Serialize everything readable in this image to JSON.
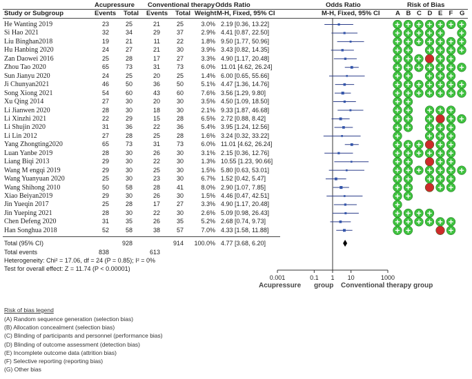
{
  "header": {
    "group1": "Acupressure",
    "group2": "Conventional therapy",
    "or_title": "Odds Ratio",
    "or_title2": "Odds Ratio",
    "rob_title": "Risk of Bias",
    "col_study": "Study or Subgroup",
    "col_events1": "Events",
    "col_total1": "Total",
    "col_events2": "Events",
    "col_total2": "Total",
    "col_weight": "Weight",
    "col_method": "M-H, Fixed, 95% CI",
    "col_method2": "M-H, Fixed, 95% CI",
    "rob_letters": [
      "A",
      "B",
      "C",
      "D",
      "E",
      "F",
      "G"
    ]
  },
  "studies": [
    {
      "name": "He Wanting 2019",
      "e1": "23",
      "t1": "25",
      "e2": "21",
      "t2": "25",
      "weight": "3.0%",
      "ci": "2.19 [0.36, 13.22]",
      "or": 2.19,
      "lo": 0.36,
      "hi": 13.22,
      "rob": [
        "+",
        "+",
        "+",
        "+",
        "+",
        "+",
        "+"
      ]
    },
    {
      "name": "Si Hao 2021",
      "e1": "32",
      "t1": "34",
      "e2": "29",
      "t2": "37",
      "weight": "2.9%",
      "ci": "4.41 [0.87, 22.50]",
      "or": 4.41,
      "lo": 0.87,
      "hi": 22.5,
      "rob": [
        "+",
        "+",
        "+",
        "+",
        "+",
        "",
        "+"
      ]
    },
    {
      "name": "Liu Binghan2018",
      "e1": "19",
      "t1": "21",
      "e2": "11",
      "t2": "22",
      "weight": "1.8%",
      "ci": "9.50 [1.77, 50.96]",
      "or": 9.5,
      "lo": 1.77,
      "hi": 50.96,
      "rob": [
        "+",
        "+",
        "+",
        "+",
        "+",
        "+",
        "+"
      ]
    },
    {
      "name": "Hu Hanbing 2020",
      "e1": "24",
      "t1": "27",
      "e2": "21",
      "t2": "30",
      "weight": "3.9%",
      "ci": "3.43 [0.82, 14.35]",
      "or": 3.43,
      "lo": 0.82,
      "hi": 14.35,
      "rob": [
        "+",
        "+",
        "",
        "+",
        "+",
        "+",
        "+"
      ]
    },
    {
      "name": "Zan Daowei 2016",
      "e1": "25",
      "t1": "28",
      "e2": "17",
      "t2": "27",
      "weight": "3.3%",
      "ci": "4.90 [1.17, 20.48]",
      "or": 4.9,
      "lo": 1.17,
      "hi": 20.48,
      "rob": [
        "+",
        "+",
        "+",
        "-",
        "+",
        "+",
        ""
      ]
    },
    {
      "name": "Zhou Tao 2020",
      "e1": "65",
      "t1": "73",
      "e2": "31",
      "t2": "73",
      "weight": "6.0%",
      "ci": "11.01 [4.62, 26.24]",
      "or": 11.01,
      "lo": 4.62,
      "hi": 26.24,
      "rob": [
        "+",
        "+",
        "+",
        "+",
        "+",
        "+",
        "+"
      ]
    },
    {
      "name": "Sun Jianyu 2020",
      "e1": "24",
      "t1": "25",
      "e2": "20",
      "t2": "25",
      "weight": "1.4%",
      "ci": "6.00 [0.65, 55.66]",
      "or": 6.0,
      "lo": 0.65,
      "hi": 55.66,
      "rob": [
        "+",
        "+",
        "",
        "+",
        "+",
        "+",
        ""
      ]
    },
    {
      "name": "Ji Chunyan2021",
      "e1": "46",
      "t1": "50",
      "e2": "36",
      "t2": "50",
      "weight": "5.1%",
      "ci": "4.47 [1.36, 14.76]",
      "or": 4.47,
      "lo": 1.36,
      "hi": 14.76,
      "rob": [
        "+",
        "+",
        "+",
        "+",
        "+",
        "+",
        "+"
      ]
    },
    {
      "name": "Song Xiong 2021",
      "e1": "54",
      "t1": "60",
      "e2": "43",
      "t2": "60",
      "weight": "7.6%",
      "ci": "3.56 [1.29, 9.80]",
      "or": 3.56,
      "lo": 1.29,
      "hi": 9.8,
      "rob": [
        "+",
        "+",
        "+",
        "+",
        "+",
        "+",
        "+"
      ]
    },
    {
      "name": "Xu Qing 2014",
      "e1": "27",
      "t1": "30",
      "e2": "20",
      "t2": "30",
      "weight": "3.5%",
      "ci": "4.50 [1.09, 18.50]",
      "or": 4.5,
      "lo": 1.09,
      "hi": 18.5,
      "rob": [
        "+",
        "+",
        "",
        "",
        "",
        "",
        ""
      ]
    },
    {
      "name": "Li Jianwen 2020",
      "e1": "28",
      "t1": "30",
      "e2": "18",
      "t2": "30",
      "weight": "2.1%",
      "ci": "9.33 [1.87, 46.68]",
      "or": 9.33,
      "lo": 1.87,
      "hi": 46.68,
      "rob": [
        "+",
        "+",
        "",
        "+",
        "+",
        "+",
        ""
      ]
    },
    {
      "name": "Li Xinzhi 2021",
      "e1": "22",
      "t1": "29",
      "e2": "15",
      "t2": "28",
      "weight": "6.5%",
      "ci": "2.72 [0.88, 8.42]",
      "or": 2.72,
      "lo": 0.88,
      "hi": 8.42,
      "rob": [
        "+",
        "+",
        "",
        "+",
        "-",
        "+",
        "+"
      ]
    },
    {
      "name": "Li Shujin 2020",
      "e1": "31",
      "t1": "36",
      "e2": "22",
      "t2": "36",
      "weight": "5.4%",
      "ci": "3.95 [1.24, 12.56]",
      "or": 3.95,
      "lo": 1.24,
      "hi": 12.56,
      "rob": [
        "+",
        "+",
        "",
        "+",
        "+",
        "+",
        ""
      ]
    },
    {
      "name": "Li Lin 2012",
      "e1": "27",
      "t1": "28",
      "e2": "25",
      "t2": "28",
      "weight": "1.6%",
      "ci": "3.24 [0.32, 33.22]",
      "or": 3.24,
      "lo": 0.32,
      "hi": 33.22,
      "rob": [
        "+",
        "",
        "",
        "+",
        "+",
        "+",
        ""
      ]
    },
    {
      "name": "Yang Zhongting2020",
      "e1": "65",
      "t1": "73",
      "e2": "31",
      "t2": "73",
      "weight": "6.0%",
      "ci": "11.01 [4.62, 26.24]",
      "or": 11.01,
      "lo": 4.62,
      "hi": 26.24,
      "rob": [
        "+",
        "+",
        "+",
        "-",
        "+",
        "+",
        ""
      ]
    },
    {
      "name": "Luan Yanbe 2019",
      "e1": "28",
      "t1": "30",
      "e2": "26",
      "t2": "30",
      "weight": "3.1%",
      "ci": "2.15 [0.36, 12.76]",
      "or": 2.15,
      "lo": 0.36,
      "hi": 12.76,
      "rob": [
        "+",
        "+",
        "+",
        "+",
        "+",
        "+",
        ""
      ]
    },
    {
      "name": "Liang Biqi 2013",
      "e1": "29",
      "t1": "30",
      "e2": "22",
      "t2": "30",
      "weight": "1.3%",
      "ci": "10.55 [1.23, 90.66]",
      "or": 10.55,
      "lo": 1.23,
      "hi": 90.66,
      "rob": [
        "+",
        "+",
        "",
        "-",
        "+",
        "+",
        ""
      ]
    },
    {
      "name": "Wang M engqi 2019",
      "e1": "29",
      "t1": "30",
      "e2": "25",
      "t2": "30",
      "weight": "1.5%",
      "ci": "5.80 [0.63, 53.01]",
      "or": 5.8,
      "lo": 0.63,
      "hi": 53.01,
      "rob": [
        "+",
        "+",
        "+",
        "+",
        "+",
        "+",
        "+"
      ]
    },
    {
      "name": "Wang Yuanyuan 2020",
      "e1": "25",
      "t1": "30",
      "e2": "23",
      "t2": "30",
      "weight": "6.7%",
      "ci": "1.52 [0.42, 5.47]",
      "or": 1.52,
      "lo": 0.42,
      "hi": 5.47,
      "rob": [
        "+",
        "+",
        "",
        "+",
        "+",
        "+",
        ""
      ]
    },
    {
      "name": "Wang Shihong 2010",
      "e1": "50",
      "t1": "58",
      "e2": "28",
      "t2": "41",
      "weight": "8.0%",
      "ci": "2.90 [1.07, 7.85]",
      "or": 2.9,
      "lo": 1.07,
      "hi": 7.85,
      "rob": [
        "+",
        "+",
        "",
        "-",
        "+",
        "+",
        ""
      ]
    },
    {
      "name": "Xiao Beiyan2019",
      "e1": "29",
      "t1": "30",
      "e2": "26",
      "t2": "30",
      "weight": "1.5%",
      "ci": "4.46 [0.47, 42.51]",
      "or": 4.46,
      "lo": 0.47,
      "hi": 42.51,
      "rob": [
        "+",
        "+",
        "",
        "",
        "",
        "",
        ""
      ]
    },
    {
      "name": "Jin Yueqin 2017",
      "e1": "25",
      "t1": "28",
      "e2": "17",
      "t2": "27",
      "weight": "3.3%",
      "ci": "4.90 [1.17, 20.48]",
      "or": 4.9,
      "lo": 1.17,
      "hi": 20.48,
      "rob": [
        "+",
        "",
        "",
        "",
        "",
        "",
        ""
      ]
    },
    {
      "name": "Jin Yueping 2021",
      "e1": "28",
      "t1": "30",
      "e2": "22",
      "t2": "30",
      "weight": "2.6%",
      "ci": "5.09 [0.98, 26.43]",
      "or": 5.09,
      "lo": 0.98,
      "hi": 26.43,
      "rob": [
        "+",
        "+",
        "+",
        "+",
        "",
        "",
        ""
      ]
    },
    {
      "name": "Chen Defeng 2020",
      "e1": "31",
      "t1": "35",
      "e2": "26",
      "t2": "35",
      "weight": "5.2%",
      "ci": "2.68 [0.74, 9.73]",
      "or": 2.68,
      "lo": 0.74,
      "hi": 9.73,
      "rob": [
        "+",
        "+",
        "+",
        "+",
        "+",
        "+",
        ""
      ]
    },
    {
      "name": "Han Songhua 2018",
      "e1": "52",
      "t1": "58",
      "e2": "38",
      "t2": "57",
      "weight": "7.0%",
      "ci": "4.33 [1.58, 11.88]",
      "or": 4.33,
      "lo": 1.58,
      "hi": 11.88,
      "rob": [
        "+",
        "+",
        "",
        "",
        "-",
        "+",
        ""
      ]
    }
  ],
  "total": {
    "label": "Total (95% CI)",
    "t1": "928",
    "t2": "914",
    "weight": "100.0%",
    "ci": "4.77 [3.68, 6.20]",
    "or": 4.77,
    "lo": 3.68,
    "hi": 6.2
  },
  "total_events": {
    "label": "Total events",
    "e1": "838",
    "e2": "613"
  },
  "heterogeneity": "Heterogeneity: Chi² = 17.06, df = 24 (P = 0.85); I² = 0%",
  "overall_effect": "Test for overall effect: Z = 11.74 (P < 0.00001)",
  "axis": {
    "ticks": [
      {
        "value": 0.001,
        "label": "0.001"
      },
      {
        "value": 0.1,
        "label": "0.1"
      },
      {
        "value": 1,
        "label": "1"
      },
      {
        "value": 10,
        "label": "10"
      },
      {
        "value": 1000,
        "label": "1000"
      }
    ],
    "favours_left": "Acupressure",
    "favours_mid": "group",
    "favours_right": "Conventional therapy group"
  },
  "legend": {
    "title": "Risk of bias legend",
    "items": [
      "(A) Random sequence generation (selection bias)",
      "(B) Allocation concealment (selection bias)",
      "(C) Blinding of participants and personnel (performance bias)",
      "(D) Blinding of outcome assessment (detection bias)",
      "(E) Incomplete outcome data (attrition bias)",
      "(F) Selective reporting (reporting bias)",
      "(G) Other bias"
    ]
  },
  "colors": {
    "low": "#3ec13e",
    "high": "#cc2a2a",
    "square": "#3355aa"
  },
  "chart_data": {
    "type": "forest",
    "title": "Odds Ratio, M-H, Fixed, 95% CI",
    "scale": "log",
    "xlim": [
      0.001,
      1000
    ],
    "xticks": [
      0.001,
      0.1,
      1,
      10,
      1000
    ],
    "xlabel_left": "Acupressure group",
    "xlabel_right": "Conventional therapy group",
    "studies": [
      {
        "name": "He Wanting 2019",
        "or": 2.19,
        "lo": 0.36,
        "hi": 13.22,
        "weight": 3.0
      },
      {
        "name": "Si Hao 2021",
        "or": 4.41,
        "lo": 0.87,
        "hi": 22.5,
        "weight": 2.9
      },
      {
        "name": "Liu Binghan2018",
        "or": 9.5,
        "lo": 1.77,
        "hi": 50.96,
        "weight": 1.8
      },
      {
        "name": "Hu Hanbing 2020",
        "or": 3.43,
        "lo": 0.82,
        "hi": 14.35,
        "weight": 3.9
      },
      {
        "name": "Zan Daowei 2016",
        "or": 4.9,
        "lo": 1.17,
        "hi": 20.48,
        "weight": 3.3
      },
      {
        "name": "Zhou Tao 2020",
        "or": 11.01,
        "lo": 4.62,
        "hi": 26.24,
        "weight": 6.0
      },
      {
        "name": "Sun Jianyu 2020",
        "or": 6.0,
        "lo": 0.65,
        "hi": 55.66,
        "weight": 1.4
      },
      {
        "name": "Ji Chunyan2021",
        "or": 4.47,
        "lo": 1.36,
        "hi": 14.76,
        "weight": 5.1
      },
      {
        "name": "Song Xiong 2021",
        "or": 3.56,
        "lo": 1.29,
        "hi": 9.8,
        "weight": 7.6
      },
      {
        "name": "Xu Qing 2014",
        "or": 4.5,
        "lo": 1.09,
        "hi": 18.5,
        "weight": 3.5
      },
      {
        "name": "Li Jianwen 2020",
        "or": 9.33,
        "lo": 1.87,
        "hi": 46.68,
        "weight": 2.1
      },
      {
        "name": "Li Xinzhi 2021",
        "or": 2.72,
        "lo": 0.88,
        "hi": 8.42,
        "weight": 6.5
      },
      {
        "name": "Li Shujin 2020",
        "or": 3.95,
        "lo": 1.24,
        "hi": 12.56,
        "weight": 5.4
      },
      {
        "name": "Li Lin 2012",
        "or": 3.24,
        "lo": 0.32,
        "hi": 33.22,
        "weight": 1.6
      },
      {
        "name": "Yang Zhongting2020",
        "or": 11.01,
        "lo": 4.62,
        "hi": 26.24,
        "weight": 6.0
      },
      {
        "name": "Luan Yanbe 2019",
        "or": 2.15,
        "lo": 0.36,
        "hi": 12.76,
        "weight": 3.1
      },
      {
        "name": "Liang Biqi 2013",
        "or": 10.55,
        "lo": 1.23,
        "hi": 90.66,
        "weight": 1.3
      },
      {
        "name": "Wang M engqi 2019",
        "or": 5.8,
        "lo": 0.63,
        "hi": 53.01,
        "weight": 1.5
      },
      {
        "name": "Wang Yuanyuan 2020",
        "or": 1.52,
        "lo": 0.42,
        "hi": 5.47,
        "weight": 6.7
      },
      {
        "name": "Wang Shihong 2010",
        "or": 2.9,
        "lo": 1.07,
        "hi": 7.85,
        "weight": 8.0
      },
      {
        "name": "Xiao Beiyan2019",
        "or": 4.46,
        "lo": 0.47,
        "hi": 42.51,
        "weight": 1.5
      },
      {
        "name": "Jin Yueqin 2017",
        "or": 4.9,
        "lo": 1.17,
        "hi": 20.48,
        "weight": 3.3
      },
      {
        "name": "Jin Yueping 2021",
        "or": 5.09,
        "lo": 0.98,
        "hi": 26.43,
        "weight": 2.6
      },
      {
        "name": "Chen Defeng 2020",
        "or": 2.68,
        "lo": 0.74,
        "hi": 9.73,
        "weight": 5.2
      },
      {
        "name": "Han Songhua 2018",
        "or": 4.33,
        "lo": 1.58,
        "hi": 11.88,
        "weight": 7.0
      }
    ],
    "total": {
      "or": 4.77,
      "lo": 3.68,
      "hi": 6.2,
      "weight": 100.0
    }
  }
}
